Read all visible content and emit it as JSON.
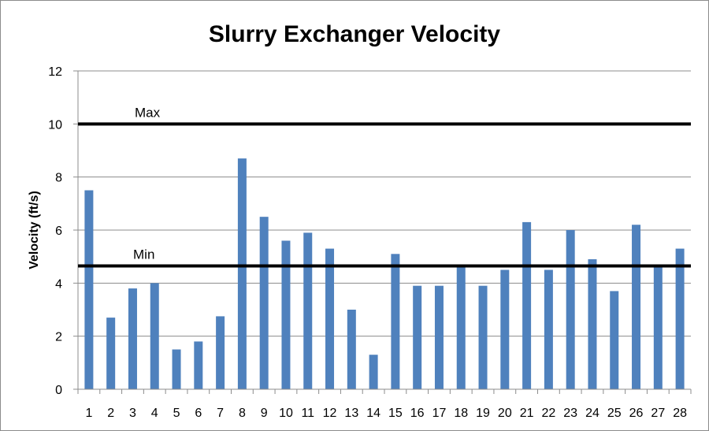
{
  "chart_data": {
    "type": "bar",
    "title": "Slurry Exchanger Velocity",
    "xlabel": "",
    "ylabel": "Velocity (ft/s)",
    "ylim": [
      0,
      12
    ],
    "yticks": [
      0,
      2,
      4,
      6,
      8,
      10,
      12
    ],
    "grid": true,
    "legend": "none",
    "bar_color": "#4f81bd",
    "categories": [
      "1",
      "2",
      "3",
      "4",
      "5",
      "6",
      "7",
      "8",
      "9",
      "10",
      "11",
      "12",
      "13",
      "14",
      "15",
      "16",
      "17",
      "18",
      "19",
      "20",
      "21",
      "22",
      "23",
      "24",
      "25",
      "26",
      "27",
      "28"
    ],
    "values": [
      7.5,
      2.7,
      3.8,
      4.0,
      1.5,
      1.8,
      2.75,
      8.7,
      6.5,
      5.6,
      5.9,
      5.3,
      3.0,
      1.3,
      5.1,
      3.9,
      3.9,
      4.6,
      3.9,
      4.5,
      6.3,
      4.5,
      6.0,
      4.9,
      3.7,
      6.2,
      4.6,
      5.3
    ],
    "reference_lines": [
      {
        "label": "Max",
        "value": 10,
        "color": "#000000"
      },
      {
        "label": "Min",
        "value": 4.65,
        "color": "#000000"
      }
    ]
  }
}
